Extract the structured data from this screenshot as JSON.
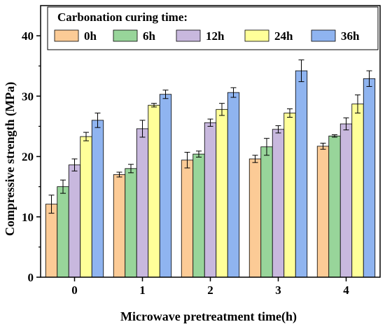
{
  "chart_data": {
    "type": "bar",
    "title": "",
    "xlabel": "Microwave pretreatment time(h)",
    "ylabel": "Compressive strength (MPa)",
    "ylim": [
      0,
      45
    ],
    "yticks": [
      0,
      10,
      20,
      30,
      40
    ],
    "categories": [
      "0",
      "1",
      "2",
      "3",
      "4"
    ],
    "legend": {
      "title": "Carbonation curing time:",
      "placement": "top"
    },
    "grid": false,
    "series": [
      {
        "name": "0h",
        "color": "#FCCB96",
        "values": [
          12.1,
          17.0,
          19.4,
          19.6,
          21.7
        ],
        "errors": [
          1.5,
          0.4,
          1.3,
          0.6,
          0.5
        ]
      },
      {
        "name": "6h",
        "color": "#98D59A",
        "values": [
          15.0,
          18.0,
          20.4,
          21.6,
          23.4
        ],
        "errors": [
          1.1,
          0.7,
          0.5,
          1.4,
          0.2
        ]
      },
      {
        "name": "12h",
        "color": "#C8B8DE",
        "values": [
          18.6,
          24.6,
          25.6,
          24.5,
          25.4
        ],
        "errors": [
          1.0,
          1.4,
          0.6,
          0.6,
          1.0
        ]
      },
      {
        "name": "24h",
        "color": "#FFFF99",
        "values": [
          23.3,
          28.5,
          27.8,
          27.2,
          28.7
        ],
        "errors": [
          0.7,
          0.3,
          1.0,
          0.7,
          1.5
        ]
      },
      {
        "name": "36h",
        "color": "#8FB4F0",
        "values": [
          26.0,
          30.3,
          30.6,
          34.2,
          32.9
        ],
        "errors": [
          1.2,
          0.7,
          0.8,
          1.8,
          1.3
        ]
      }
    ]
  }
}
